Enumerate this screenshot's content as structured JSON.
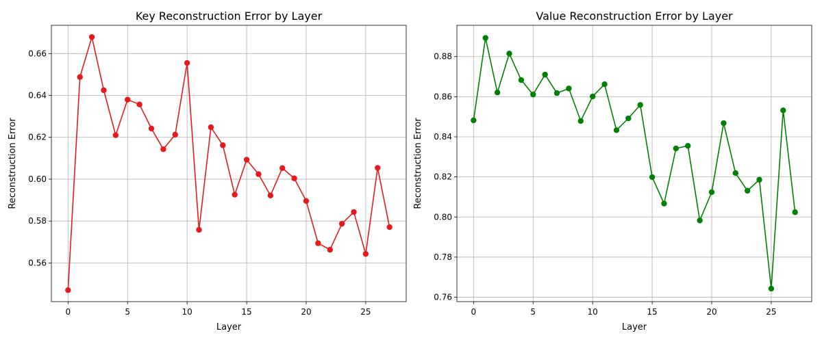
{
  "chart_data": [
    {
      "type": "line",
      "title": "Key Reconstruction Error by Layer",
      "xlabel": "Layer",
      "ylabel": "Reconstruction Error",
      "color": "#e41a1c",
      "grid": true,
      "xlim": [
        -1.4,
        28.4
      ],
      "ylim": [
        0.5415,
        0.6735
      ],
      "xticks": [
        0,
        5,
        10,
        15,
        20,
        25
      ],
      "yticks": [
        0.56,
        0.58,
        0.6,
        0.62,
        0.64,
        0.66
      ],
      "ytick_labels": [
        "0.56",
        "0.58",
        "0.60",
        "0.62",
        "0.64",
        "0.66"
      ],
      "x": [
        0,
        1,
        2,
        3,
        4,
        5,
        6,
        7,
        8,
        9,
        10,
        11,
        12,
        13,
        14,
        15,
        16,
        17,
        18,
        19,
        20,
        21,
        22,
        23,
        24,
        25,
        26,
        27
      ],
      "values": [
        0.547,
        0.6488,
        0.6679,
        0.6425,
        0.621,
        0.638,
        0.6357,
        0.6242,
        0.6143,
        0.6213,
        0.6555,
        0.5758,
        0.6248,
        0.6162,
        0.5926,
        0.6093,
        0.6024,
        0.5922,
        0.6053,
        0.6004,
        0.5896,
        0.5694,
        0.5663,
        0.5787,
        0.5843,
        0.5643,
        0.6054,
        0.5771
      ]
    },
    {
      "type": "line",
      "title": "Value Reconstruction Error by Layer",
      "xlabel": "Layer",
      "ylabel": "Reconstruction Error",
      "color": "#008000",
      "grid": true,
      "xlim": [
        -1.4,
        28.4
      ],
      "ylim": [
        0.7578,
        0.8956
      ],
      "xticks": [
        0,
        5,
        10,
        15,
        20,
        25
      ],
      "yticks": [
        0.76,
        0.78,
        0.8,
        0.82,
        0.84,
        0.86,
        0.88
      ],
      "ytick_labels": [
        "0.76",
        "0.78",
        "0.80",
        "0.82",
        "0.84",
        "0.86",
        "0.88"
      ],
      "x": [
        0,
        1,
        2,
        3,
        4,
        5,
        6,
        7,
        8,
        9,
        10,
        11,
        12,
        13,
        14,
        15,
        16,
        17,
        18,
        19,
        20,
        21,
        22,
        23,
        24,
        25,
        26,
        27
      ],
      "values": [
        0.8482,
        0.8893,
        0.8621,
        0.8815,
        0.8683,
        0.8611,
        0.871,
        0.8618,
        0.8641,
        0.8479,
        0.8601,
        0.8662,
        0.8433,
        0.8492,
        0.8559,
        0.8199,
        0.8067,
        0.8342,
        0.8355,
        0.7983,
        0.8124,
        0.8468,
        0.8219,
        0.8131,
        0.8186,
        0.7643,
        0.8532,
        0.8024
      ]
    }
  ]
}
